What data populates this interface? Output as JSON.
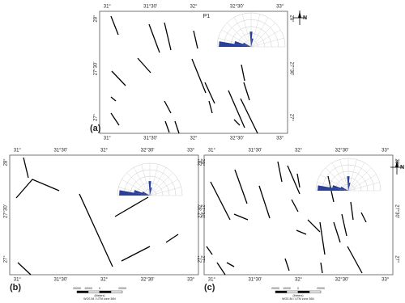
{
  "north": "N",
  "panels": [
    {
      "label": "(a)",
      "annotation": "P1",
      "top": [
        "31°",
        "31°30'",
        "32°",
        "32°30'",
        "33°"
      ],
      "bottom": [
        "31°",
        "31°30'",
        "32°",
        "32°30'",
        "33°"
      ],
      "left": [
        "28°",
        "27°30'",
        "27°"
      ],
      "right": [
        "28°",
        "27°30'",
        "27°"
      ]
    },
    {
      "label": "(b)",
      "top": [
        "31°",
        "31°30'",
        "32°",
        "32°30'",
        "33°"
      ],
      "bottom": [
        "31°",
        "31°30'",
        "32°",
        "32°30'",
        "33°"
      ],
      "left": [
        "28°",
        "27°30'",
        "27°"
      ],
      "right": [
        "28°",
        "27°30'",
        "27°"
      ],
      "scale_bar": {
        "labels": [
          "20000",
          "10000",
          "0",
          "20000"
        ],
        "unit": "(Meters)",
        "datum": "WGS 84 / UTM zone 36N"
      }
    },
    {
      "label": "(c)",
      "top": [
        "31°",
        "31°30'",
        "32°",
        "32°30'",
        "33°"
      ],
      "bottom": [
        "31°",
        "31°30'",
        "32°",
        "32°30'",
        "33°"
      ],
      "left": [
        "28°",
        "27°30'",
        "27°"
      ],
      "right": [
        "28°",
        "27°30'",
        "27°"
      ],
      "scale_bar": {
        "labels": [
          "20000",
          "10000",
          "0",
          "20000"
        ],
        "unit": "(Meters)",
        "datum": "WGS 84 / UTM zone 36N"
      }
    }
  ]
}
